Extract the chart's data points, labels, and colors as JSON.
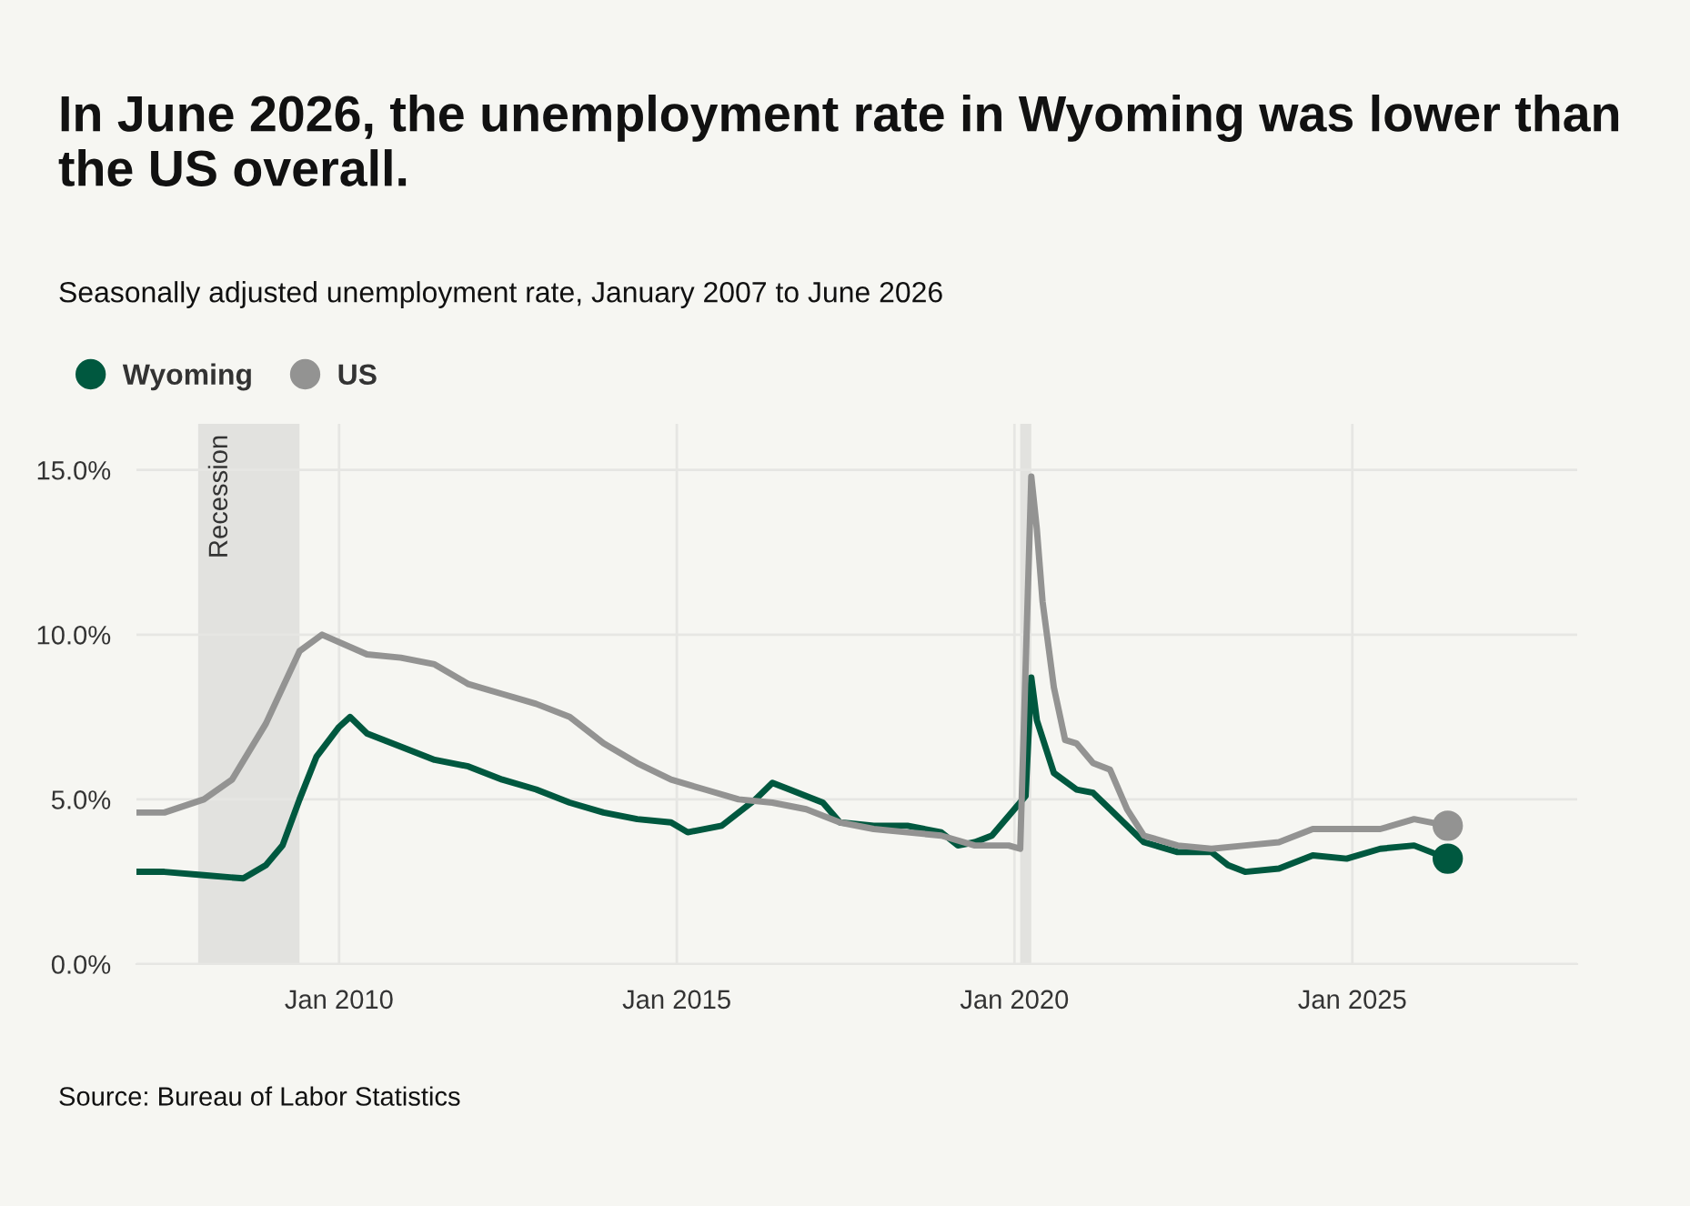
{
  "chart_data": {
    "type": "line",
    "title": "In June 2026, the unemployment rate in Wyoming was lower than the US overall.",
    "subtitle": "Seasonally adjusted unemployment rate, January 2007 to June 2026",
    "annotations": [
      "Source: Bureau of Labor Statistics"
    ],
    "series": [
      {
        "name": "Wyoming",
        "color": "#00583f",
        "x": [
          "2007-01",
          "2007-06",
          "2008-01",
          "2008-08",
          "2008-12",
          "2009-03",
          "2009-06",
          "2009-09",
          "2010-01",
          "2010-03",
          "2010-06",
          "2010-12",
          "2011-06",
          "2011-12",
          "2012-06",
          "2012-12",
          "2013-06",
          "2013-12",
          "2014-06",
          "2014-12",
          "2015-03",
          "2015-09",
          "2016-03",
          "2016-06",
          "2016-09",
          "2017-03",
          "2017-06",
          "2017-12",
          "2018-06",
          "2018-12",
          "2019-03",
          "2019-06",
          "2019-09",
          "2020-03",
          "2020-04",
          "2020-05",
          "2020-08",
          "2020-12",
          "2021-03",
          "2021-06",
          "2021-12",
          "2022-06",
          "2022-12",
          "2023-03",
          "2023-06",
          "2023-12",
          "2024-06",
          "2024-12",
          "2025-06",
          "2025-12",
          "2026-06"
        ],
        "values": [
          2.8,
          2.8,
          2.7,
          2.6,
          3.0,
          3.6,
          5.0,
          6.3,
          7.2,
          7.5,
          7.0,
          6.6,
          6.2,
          6.0,
          5.6,
          5.3,
          4.9,
          4.6,
          4.4,
          4.3,
          4.0,
          4.2,
          5.0,
          5.5,
          5.3,
          4.9,
          4.3,
          4.2,
          4.2,
          4.0,
          3.6,
          3.7,
          3.9,
          5.1,
          8.7,
          7.4,
          5.8,
          5.3,
          5.2,
          4.7,
          3.7,
          3.4,
          3.4,
          3.0,
          2.8,
          2.9,
          3.3,
          3.2,
          3.5,
          3.6,
          3.2
        ]
      },
      {
        "name": "US",
        "color": "#939392",
        "x": [
          "2007-01",
          "2007-06",
          "2008-01",
          "2008-06",
          "2008-12",
          "2009-06",
          "2009-10",
          "2010-06",
          "2010-12",
          "2011-06",
          "2011-12",
          "2012-06",
          "2012-12",
          "2013-06",
          "2013-12",
          "2014-06",
          "2014-12",
          "2015-06",
          "2015-12",
          "2016-06",
          "2016-12",
          "2017-06",
          "2017-12",
          "2018-06",
          "2018-12",
          "2019-06",
          "2019-12",
          "2020-02",
          "2020-04",
          "2020-05",
          "2020-06",
          "2020-08",
          "2020-10",
          "2020-12",
          "2021-03",
          "2021-06",
          "2021-09",
          "2021-12",
          "2022-06",
          "2022-12",
          "2023-06",
          "2023-12",
          "2024-06",
          "2024-12",
          "2025-06",
          "2025-12",
          "2026-06"
        ],
        "values": [
          4.6,
          4.6,
          5.0,
          5.6,
          7.3,
          9.5,
          10.0,
          9.4,
          9.3,
          9.1,
          8.5,
          8.2,
          7.9,
          7.5,
          6.7,
          6.1,
          5.6,
          5.3,
          5.0,
          4.9,
          4.7,
          4.3,
          4.1,
          4.0,
          3.9,
          3.6,
          3.6,
          3.5,
          14.8,
          13.2,
          11.0,
          8.4,
          6.8,
          6.7,
          6.1,
          5.9,
          4.7,
          3.9,
          3.6,
          3.5,
          3.6,
          3.7,
          4.1,
          4.1,
          4.1,
          4.4,
          4.2
        ]
      }
    ],
    "bands": [
      {
        "axis": "x",
        "from": "2007-12",
        "to": "2009-06",
        "label": "Recession",
        "color": "#e2e2df"
      },
      {
        "axis": "x",
        "from": "2020-02",
        "to": "2020-04",
        "color": "#e2e2df"
      }
    ],
    "xlim": [
      "2007-01",
      "2028-05"
    ],
    "xticks": [
      {
        "value": "2010-01",
        "label": "Jan 2010"
      },
      {
        "value": "2015-01",
        "label": "Jan 2015"
      },
      {
        "value": "2020-01",
        "label": "Jan 2020"
      },
      {
        "value": "2025-01",
        "label": "Jan 2025"
      }
    ],
    "ylim": [
      0,
      16.4
    ],
    "yticks": [
      {
        "value": 0,
        "label": "0.0%"
      },
      {
        "value": 5,
        "label": "5.0%"
      },
      {
        "value": 10,
        "label": "10.0%"
      },
      {
        "value": 15,
        "label": "15.0%"
      }
    ],
    "grid": true,
    "legend": "top left"
  }
}
